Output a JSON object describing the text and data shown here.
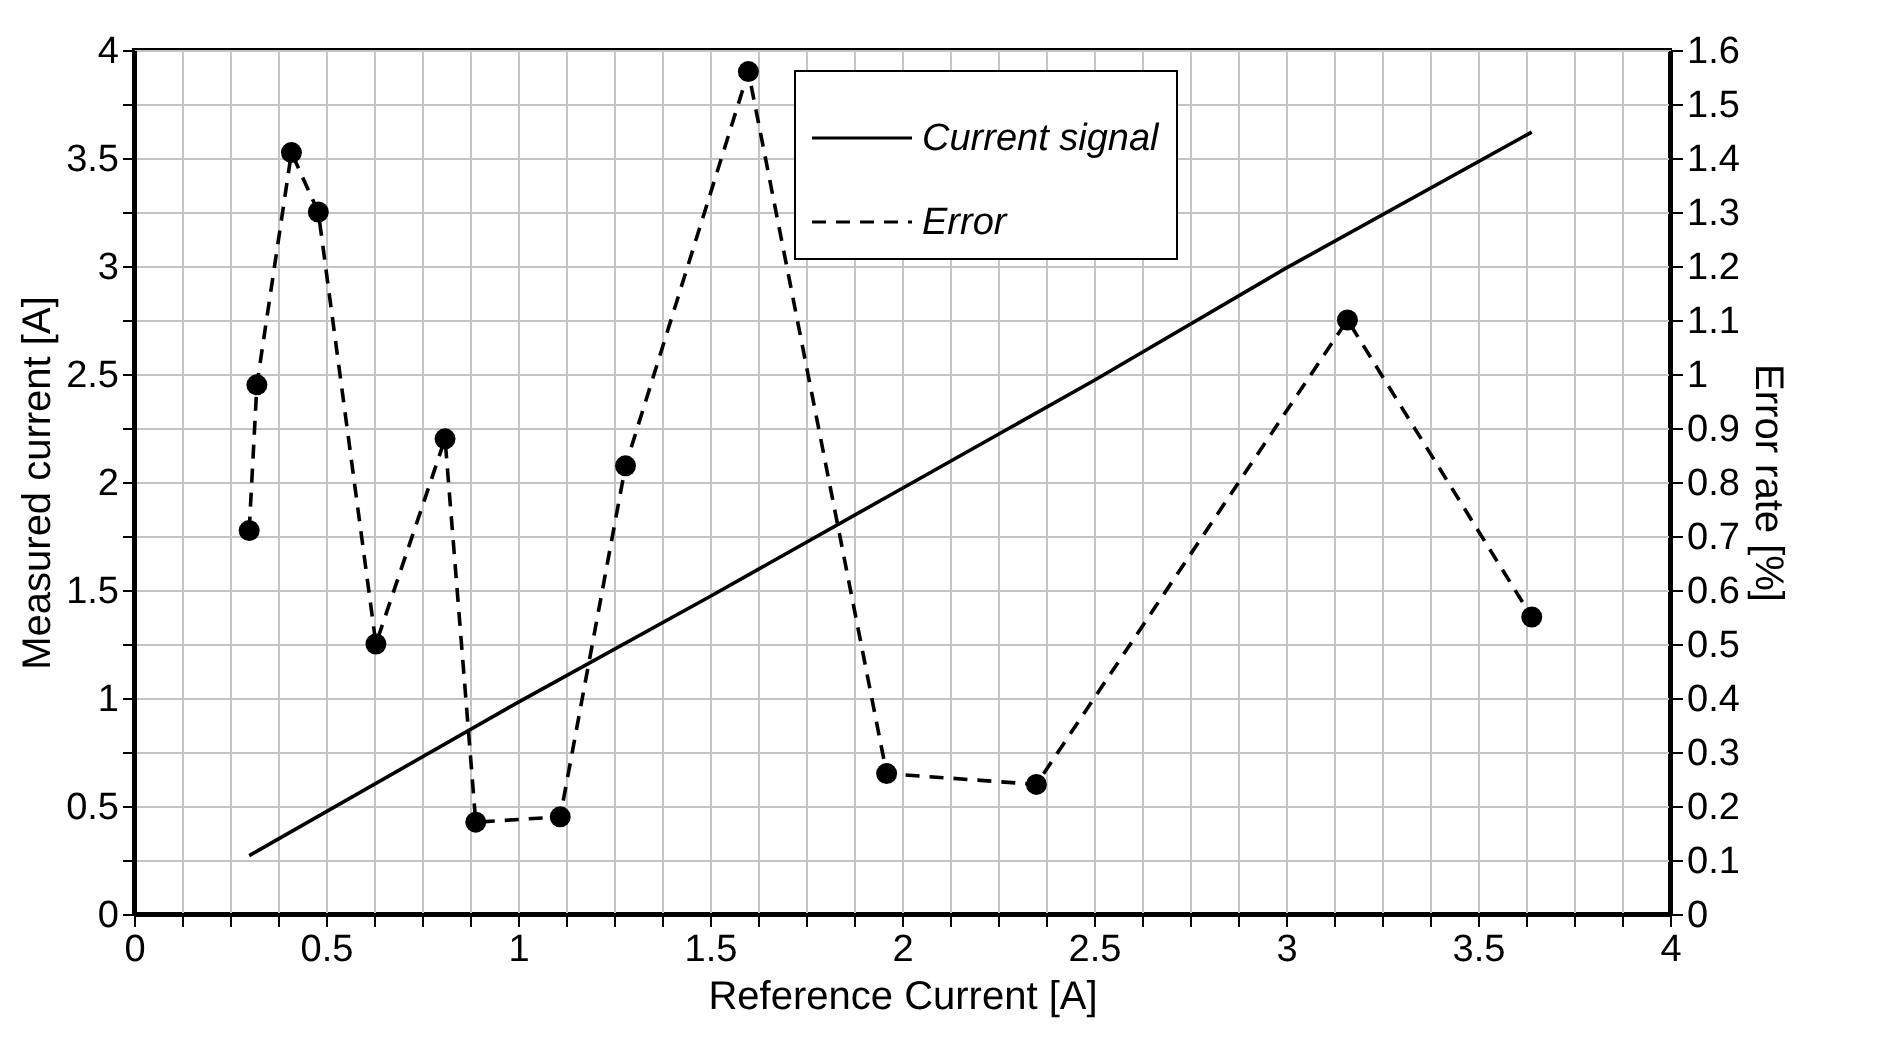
{
  "chart_data": {
    "type": "line",
    "xlabel": "Reference Current [A]",
    "ylabel": "Measured current [A]",
    "y2label": "Error rate [%]",
    "xlim": [
      0,
      4
    ],
    "ylim": [
      0,
      4
    ],
    "y2lim": [
      0,
      1.6
    ],
    "xticks": [
      0,
      {
        "value": 0.125,
        "label": null
      },
      {
        "value": 0.25,
        "label": null
      },
      {
        "value": 0.375,
        "label": null
      },
      0.5,
      {
        "value": 0.625,
        "label": null
      },
      {
        "value": 0.75,
        "label": null
      },
      {
        "value": 0.875,
        "label": null
      },
      1,
      {
        "value": 1.125,
        "label": null
      },
      {
        "value": 1.25,
        "label": null
      },
      {
        "value": 1.375,
        "label": null
      },
      1.5,
      {
        "value": 1.625,
        "label": null
      },
      {
        "value": 1.75,
        "label": null
      },
      {
        "value": 1.875,
        "label": null
      },
      2,
      {
        "value": 2.125,
        "label": null
      },
      {
        "value": 2.25,
        "label": null
      },
      {
        "value": 2.375,
        "label": null
      },
      2.5,
      {
        "value": 2.625,
        "label": null
      },
      {
        "value": 2.75,
        "label": null
      },
      {
        "value": 2.875,
        "label": null
      },
      3,
      {
        "value": 3.125,
        "label": null
      },
      {
        "value": 3.25,
        "label": null
      },
      {
        "value": 3.375,
        "label": null
      },
      3.5,
      {
        "value": 3.625,
        "label": null
      },
      {
        "value": 3.75,
        "label": null
      },
      {
        "value": 3.875,
        "label": null
      },
      4
    ],
    "yticks": [
      0,
      {
        "value": 0.25,
        "label": null
      },
      0.5,
      {
        "value": 0.75,
        "label": null
      },
      1,
      {
        "value": 1.25,
        "label": null
      },
      1.5,
      {
        "value": 1.75,
        "label": null
      },
      2,
      {
        "value": 2.25,
        "label": null
      },
      2.5,
      {
        "value": 2.75,
        "label": null
      },
      3,
      {
        "value": 3.25,
        "label": null
      },
      3.5,
      {
        "value": 3.75,
        "label": null
      },
      4
    ],
    "y2ticks": [
      0,
      0.1,
      0.2,
      0.3,
      0.4,
      0.5,
      0.6,
      0.7,
      0.8,
      0.9,
      1,
      1.1,
      1.2,
      1.3,
      1.4,
      1.5,
      1.6
    ],
    "grid": true,
    "legend": "top",
    "series": [
      {
        "name": "Current signal",
        "color": "#000000",
        "line_style": "solid",
        "x": [
          0.3,
          1.0,
          1.5,
          2.0,
          2.5,
          3.0,
          3.64
        ],
        "values": [
          0.27,
          0.98,
          1.47,
          1.97,
          2.47,
          2.99,
          3.62
        ]
      },
      {
        "name": "Error",
        "color": "#000000",
        "line_style": "dashed",
        "marker": "circle",
        "axis": "y2",
        "x": [
          0.3,
          0.32,
          0.41,
          0.48,
          0.63,
          0.81,
          0.89,
          1.11,
          1.28,
          1.6,
          1.96,
          2.35,
          3.16,
          3.64
        ],
        "values": [
          0.71,
          0.98,
          1.41,
          1.3,
          0.5,
          0.88,
          0.17,
          0.18,
          0.83,
          1.56,
          0.26,
          0.24,
          1.1,
          0.55
        ]
      }
    ]
  }
}
